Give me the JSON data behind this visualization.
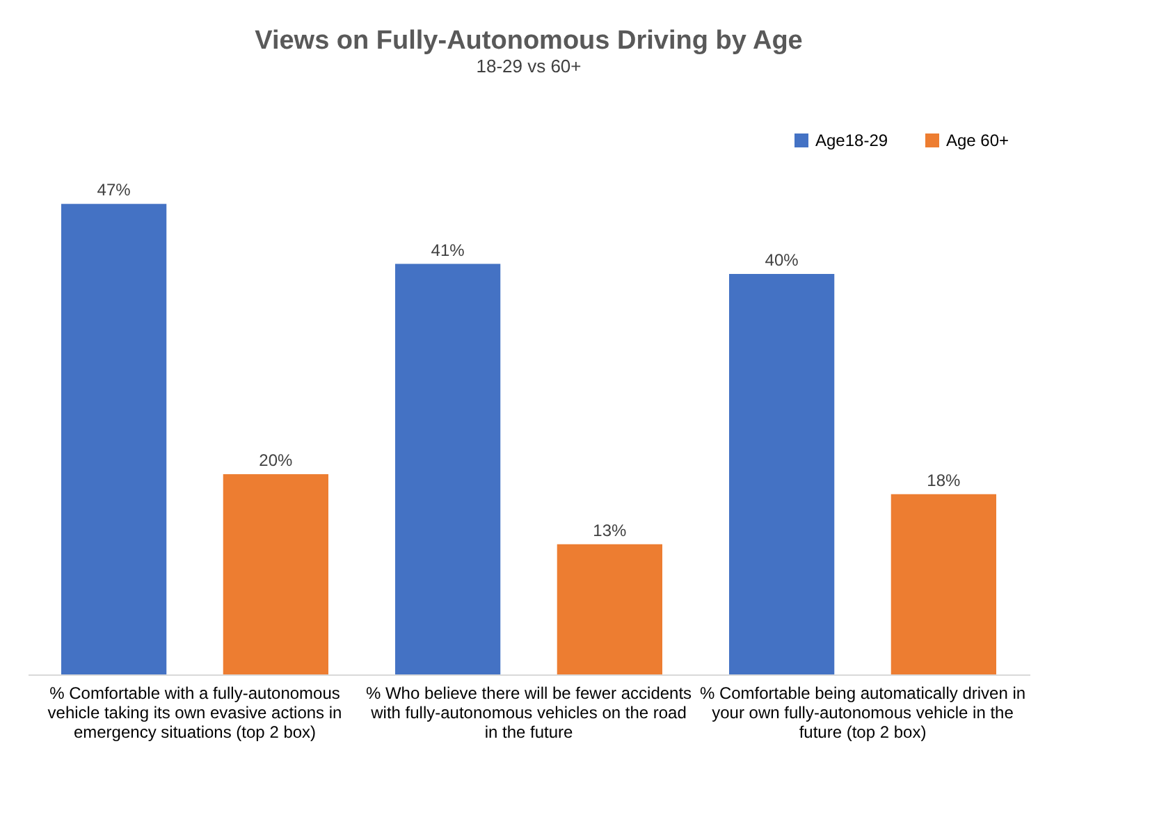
{
  "chart_data": {
    "type": "bar",
    "title": "Views on Fully-Autonomous Driving by Age",
    "subtitle": "18-29 vs 60+",
    "categories": [
      "% Comfortable with a fully-autonomous vehicle taking its own evasive actions in emergency situations (top 2 box)",
      "% Who believe there will be fewer accidents with fully-autonomous vehicles on the road in the future",
      "% Comfortable being automatically driven in your own fully-autonomous vehicle in the future (top 2 box)"
    ],
    "series": [
      {
        "name": "Age18-29",
        "color": "#4472c4",
        "values": [
          47,
          41,
          40
        ],
        "value_labels": [
          "47%",
          "41%",
          "40%"
        ]
      },
      {
        "name": "Age 60+",
        "color": "#ed7d31",
        "values": [
          20,
          13,
          18
        ],
        "value_labels": [
          "20%",
          "13%",
          "18%"
        ]
      }
    ],
    "legend": "top right"
  }
}
